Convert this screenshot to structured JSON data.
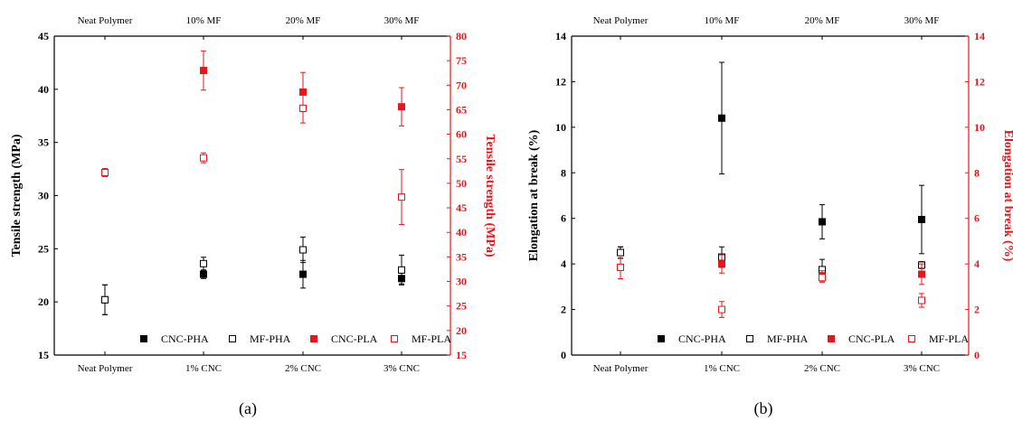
{
  "chart_data": [
    {
      "type": "scatter",
      "caption": "(a)",
      "bottom_categories": [
        "Neat Polymer",
        "1% CNC",
        "2% CNC",
        "3% CNC"
      ],
      "top_categories": [
        "Neat Polymer",
        "10% MF",
        "20% MF",
        "30% MF"
      ],
      "ylabel_left": "Tensile strength (MPa)",
      "ylabel_right": "Tensile strength (MPa)",
      "ylim_left": [
        15,
        45
      ],
      "yticks_left": [
        15,
        20,
        25,
        30,
        35,
        40,
        45
      ],
      "ylim_right": [
        15,
        80
      ],
      "yticks_right": [
        15,
        20,
        25,
        30,
        35,
        40,
        45,
        50,
        55,
        60,
        65,
        70,
        75,
        80
      ],
      "legend_position": "bottom",
      "series": [
        {
          "name": "CNC-PHA",
          "axis": "left",
          "color": "#000000",
          "filled": true,
          "values": [
            20.2,
            22.6,
            22.6,
            22.2
          ],
          "errors": [
            1.4,
            0.4,
            1.3,
            0.5
          ]
        },
        {
          "name": "MF-PHA",
          "axis": "left",
          "color": "#000000",
          "filled": false,
          "values": [
            20.2,
            23.6,
            24.9,
            23.0
          ],
          "errors": [
            1.4,
            0.6,
            1.2,
            1.4
          ]
        },
        {
          "name": "CNC-PLA",
          "axis": "right",
          "color": "#e8161c",
          "filled": true,
          "values": [
            52.2,
            73.0,
            68.6,
            65.6
          ],
          "errors": [
            0.8,
            4.0,
            4.0,
            3.9
          ]
        },
        {
          "name": "MF-PLA",
          "axis": "right",
          "color": "#e8161c",
          "filled": false,
          "values": [
            52.2,
            55.2,
            65.3,
            47.2
          ],
          "errors": [
            0.8,
            1.0,
            3.0,
            5.6
          ]
        }
      ]
    },
    {
      "type": "scatter",
      "caption": "(b)",
      "bottom_categories": [
        "Neat Polymer",
        "1% CNC",
        "2% CNC",
        "3% CNC"
      ],
      "top_categories": [
        "Neat Polymer",
        "10% MF",
        "20% MF",
        "30% MF"
      ],
      "ylabel_left": "Elongation at break (%)",
      "ylabel_right": "Elongation at break (%)",
      "ylim_left": [
        0,
        14
      ],
      "yticks_left": [
        0,
        2,
        4,
        6,
        8,
        10,
        12,
        14
      ],
      "ylim_right": [
        0,
        14
      ],
      "yticks_right": [
        0,
        2,
        4,
        6,
        8,
        10,
        12,
        14
      ],
      "legend_position": "bottom",
      "series": [
        {
          "name": "CNC-PHA",
          "axis": "left",
          "color": "#000000",
          "filled": true,
          "values": [
            4.5,
            10.4,
            5.85,
            5.95
          ],
          "errors": [
            0.25,
            2.45,
            0.75,
            1.5
          ]
        },
        {
          "name": "MF-PHA",
          "axis": "left",
          "color": "#000000",
          "filled": false,
          "values": [
            4.5,
            4.3,
            3.75,
            3.95
          ],
          "errors": [
            0.25,
            0.45,
            0.45,
            0.15
          ]
        },
        {
          "name": "CNC-PLA",
          "axis": "right",
          "color": "#e8161c",
          "filled": true,
          "values": [
            3.85,
            4.0,
            3.45,
            3.55
          ],
          "errors": [
            0.5,
            0.4,
            0.25,
            0.45
          ]
        },
        {
          "name": "MF-PLA",
          "axis": "right",
          "color": "#e8161c",
          "filled": false,
          "values": [
            3.85,
            2.0,
            3.4,
            2.4
          ],
          "errors": [
            0.5,
            0.35,
            0.15,
            0.3
          ]
        }
      ]
    }
  ]
}
